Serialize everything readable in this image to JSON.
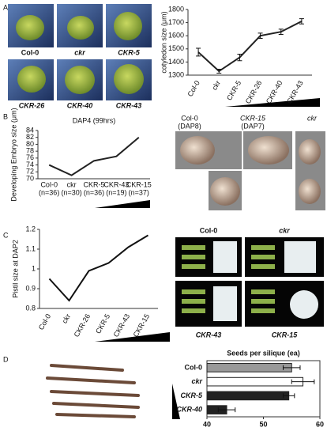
{
  "panel_labels": [
    "A",
    "B",
    "C",
    "D"
  ],
  "panel_a_photos": [
    "Col-0",
    "ckr",
    "CKR-5",
    "CKR-26",
    "CKR-40",
    "CKR-43"
  ],
  "panel_b_photos": [
    [
      "Col-0",
      "(DAP8)"
    ],
    [
      "CKR-15",
      "(DAP7)"
    ],
    [
      "ckr"
    ]
  ],
  "panel_c_photos": [
    "Col-0",
    "ckr",
    "CKR-43",
    "CKR-15"
  ],
  "chart_data": [
    {
      "type": "line",
      "ylabel": "cotyledon size (μm)",
      "categories": [
        "Col-0",
        "ckr",
        "CKR-5",
        "CKR-26",
        "CKR-40",
        "CKR-43"
      ],
      "values": [
        1475,
        1330,
        1435,
        1600,
        1630,
        1710
      ],
      "errors": [
        30,
        15,
        25,
        20,
        20,
        20
      ],
      "color": "#222222",
      "ylim": [
        1300,
        1800
      ],
      "yticks": [
        1300,
        1400,
        1500,
        1600,
        1700,
        1800
      ]
    },
    {
      "type": "line",
      "title": "DAP4 (99hrs)",
      "ylabel": "Developing Embryo size (μm)",
      "categories": [
        "Col-0",
        "ckr",
        "CKR-5",
        "CKR-43",
        "CKR-15"
      ],
      "sample_sizes": [
        "(n=36)",
        "(n=30)",
        "(n=36)",
        "(n=19)",
        "(n=37)"
      ],
      "values": [
        74,
        71,
        75.2,
        76.5,
        82
      ],
      "color": "#222222",
      "ylim": [
        70,
        84
      ],
      "yticks": [
        70,
        72,
        74,
        76,
        78,
        80,
        82,
        84
      ]
    },
    {
      "type": "line",
      "ylabel": "Pistil size at DAP2",
      "categories": [
        "Col-0",
        "ckr",
        "CKR-26",
        "CKR-5",
        "CKR-43",
        "CKR-15"
      ],
      "values": [
        0.95,
        0.84,
        0.99,
        1.03,
        1.11,
        1.17
      ],
      "color": "#111111",
      "ylim": [
        0.8,
        1.2
      ],
      "yticks": [
        0.8,
        0.9,
        1,
        1.1,
        1.2
      ]
    },
    {
      "type": "hbar",
      "title": "Seeds per silique (ea)",
      "categories": [
        "Col-0",
        "ckr",
        "CKR-5",
        "CKR-40"
      ],
      "values": [
        55,
        57,
        54.5,
        43.5
      ],
      "errors": [
        1.5,
        2,
        1,
        1.5
      ],
      "colors": [
        "#999999",
        "#ffffff",
        "#222222",
        "#222222"
      ],
      "xlim": [
        40,
        60
      ],
      "xticks": [
        40,
        50,
        60
      ]
    }
  ]
}
